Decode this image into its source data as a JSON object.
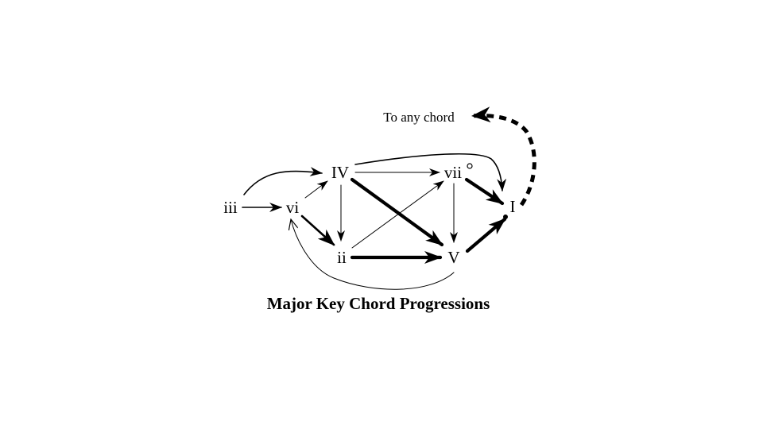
{
  "title": "Major Key Chord Progressions",
  "note": "To any chord",
  "chords": {
    "iii": "iii",
    "vi": "vi",
    "IV": "IV",
    "ii": "ii",
    "vii": "vii",
    "V": "V",
    "I": "I"
  },
  "diminished_symbol": "°",
  "colors": {
    "ink": "#000000",
    "background": "#ffffff"
  }
}
